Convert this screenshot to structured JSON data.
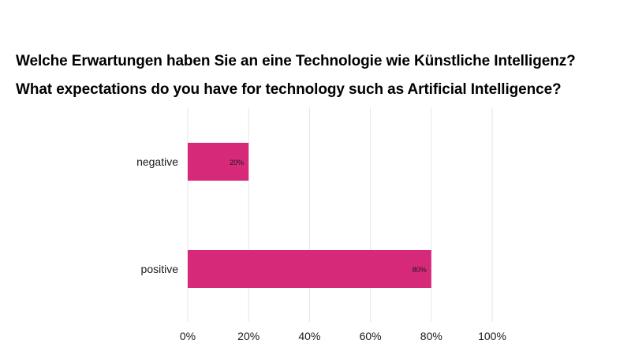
{
  "chart_data": {
    "type": "bar",
    "orientation": "horizontal",
    "title": "Welche Erwartungen haben Sie an eine Technologie wie Künstliche Intelligenz?",
    "subtitle": "What expectations do you have for technology such as Artificial Intelligence?",
    "categories": [
      "negative",
      "positive"
    ],
    "values": [
      20,
      80
    ],
    "data_labels": [
      "20%",
      "80%"
    ],
    "xlim": [
      0,
      100
    ],
    "x_ticks": [
      0,
      20,
      40,
      60,
      80,
      100
    ],
    "x_tick_labels": [
      "0%",
      "20%",
      "40%",
      "60%",
      "80%",
      "100%"
    ],
    "xlabel": "",
    "ylabel": "",
    "grid": "vertical",
    "legend": "none",
    "bar_color": "#d6297a",
    "grid_color": "#e6e6e6"
  }
}
